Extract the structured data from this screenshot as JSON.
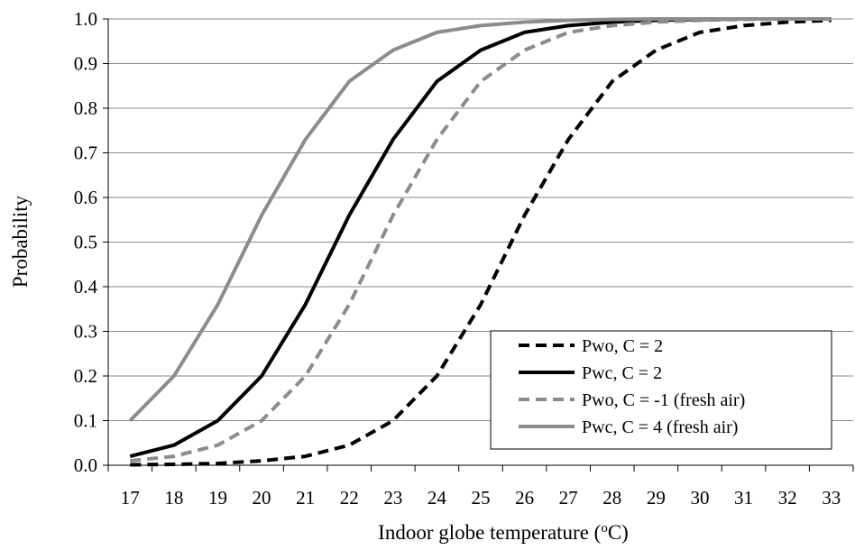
{
  "chart_data": {
    "type": "line",
    "title": "",
    "xlabel": "Indoor globe temperature (",
    "xlabel_sup": "o",
    "xlabel_tail": "C)",
    "ylabel": "Probability",
    "xlim": [
      16.5,
      33.5
    ],
    "ylim": [
      0,
      1
    ],
    "grid": true,
    "legend": "bottom-right",
    "x": [
      17,
      18,
      19,
      20,
      21,
      22,
      23,
      24,
      25,
      26,
      27,
      28,
      29,
      30,
      31,
      32,
      33
    ],
    "x_tick_labels": [
      "17",
      "18",
      "19",
      "20",
      "21",
      "22",
      "23",
      "24",
      "25",
      "26",
      "27",
      "28",
      "29",
      "30",
      "31",
      "32",
      "33"
    ],
    "y_tick_labels": [
      "0.0",
      "0.1",
      "0.2",
      "0.3",
      "0.4",
      "0.5",
      "0.6",
      "0.7",
      "0.8",
      "0.9",
      "1.0"
    ],
    "y_ticks": [
      0,
      0.1,
      0.2,
      0.3,
      0.4,
      0.5,
      0.6,
      0.7,
      0.8,
      0.9,
      1.0
    ],
    "series": [
      {
        "name": "Pwo, C = 2",
        "color": "#000000",
        "dash": true,
        "values": [
          0.001,
          0.002,
          0.004,
          0.01,
          0.02,
          0.045,
          0.1,
          0.2,
          0.36,
          0.56,
          0.73,
          0.86,
          0.93,
          0.97,
          0.985,
          0.993,
          0.997
        ]
      },
      {
        "name": "Pwc, C = 2",
        "color": "#000000",
        "dash": false,
        "values": [
          0.02,
          0.045,
          0.1,
          0.2,
          0.36,
          0.56,
          0.73,
          0.86,
          0.93,
          0.97,
          0.985,
          0.993,
          0.997,
          0.999,
          1.0,
          1.0,
          1.0
        ]
      },
      {
        "name": "Pwo, C = -1 (fresh air)",
        "color": "#8c8c8c",
        "dash": true,
        "values": [
          0.01,
          0.02,
          0.045,
          0.1,
          0.2,
          0.36,
          0.56,
          0.73,
          0.86,
          0.93,
          0.97,
          0.985,
          0.993,
          0.997,
          0.999,
          1.0,
          1.0
        ]
      },
      {
        "name": "Pwc, C = 4 (fresh air)",
        "color": "#8c8c8c",
        "dash": false,
        "values": [
          0.1,
          0.2,
          0.36,
          0.56,
          0.73,
          0.86,
          0.93,
          0.97,
          0.985,
          0.993,
          0.997,
          0.999,
          1.0,
          1.0,
          1.0,
          1.0,
          1.0
        ]
      }
    ]
  }
}
